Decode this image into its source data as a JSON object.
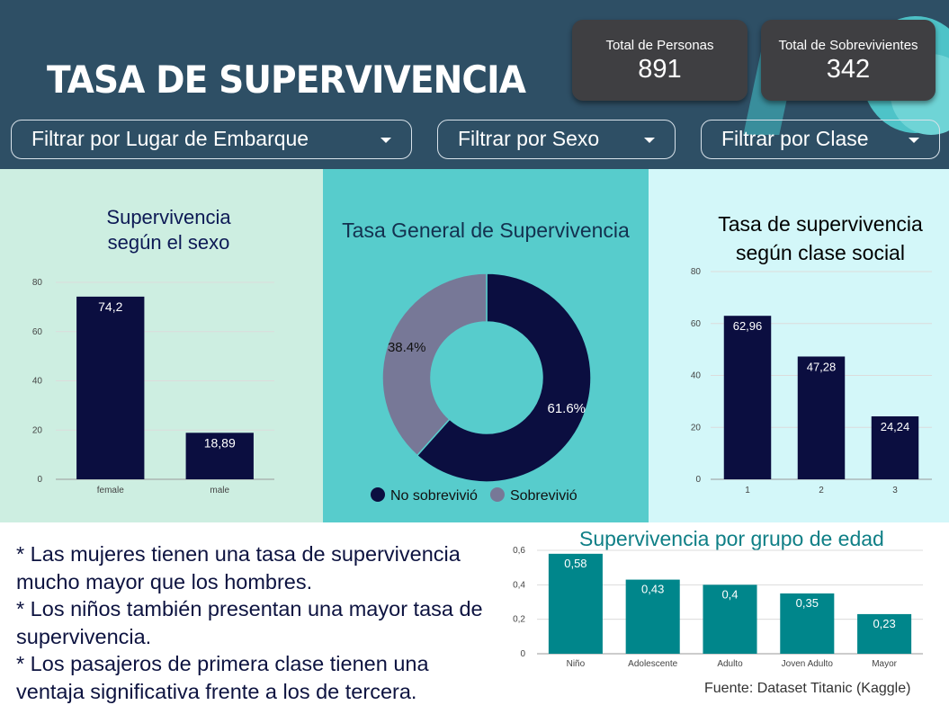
{
  "header": {
    "title": "TASA DE SUPERVIVENCIA",
    "kpis": [
      {
        "label": "Total de Personas",
        "value": "891"
      },
      {
        "label": "Total de Sobrevivientes",
        "value": "342"
      }
    ],
    "filters": [
      {
        "label": "Filtrar por Lugar de Embarque",
        "icon": "caret-down-icon"
      },
      {
        "label": "Filtrar por Sexo",
        "icon": "caret-down-icon"
      },
      {
        "label": "Filtrar por Clase",
        "icon": "caret-down-icon"
      }
    ]
  },
  "colors": {
    "header_bg": "#2e4f65",
    "navy": "#0b0e40",
    "grey_purple": "#777897",
    "teal": "#00868b",
    "panel_sex_bg": "#cdeee1",
    "panel_donut_bg": "#57cccc",
    "panel_class_bg": "#d3f7f9"
  },
  "chart_data": [
    {
      "type": "bar",
      "title": "Supervivencia según el sexo",
      "title_lines": [
        "Supervivencia",
        "según el sexo"
      ],
      "categories": [
        "female",
        "male"
      ],
      "values": [
        74.2,
        18.89
      ],
      "value_labels": [
        "74,2",
        "18,89"
      ],
      "yticks": [
        "0",
        "20",
        "40",
        "60",
        "80"
      ],
      "ylim": [
        0,
        80
      ],
      "grid": true
    },
    {
      "type": "pie",
      "title": "Tasa General de Supervivencia",
      "slices": [
        {
          "name": "No sobrevivió",
          "value": 61.6,
          "label": "61.6%",
          "color": "#0b0e40"
        },
        {
          "name": "Sobrevivió",
          "value": 38.4,
          "label": "38.4%",
          "color": "#777897"
        }
      ],
      "legend": "bottom"
    },
    {
      "type": "bar",
      "title": "Tasa de supervivencia según clase social",
      "title_lines": [
        "Tasa de supervivencia",
        "según clase social"
      ],
      "categories": [
        "1",
        "2",
        "3"
      ],
      "values": [
        62.96,
        47.28,
        24.24
      ],
      "value_labels": [
        "62,96",
        "47,28",
        "24,24"
      ],
      "yticks": [
        "0",
        "20",
        "40",
        "60",
        "80"
      ],
      "ylim": [
        0,
        80
      ],
      "grid": true
    },
    {
      "type": "bar",
      "title": "Supervivencia por grupo de edad",
      "categories": [
        "Niño",
        "Adolescente",
        "Adulto",
        "Joven Adulto",
        "Mayor"
      ],
      "values": [
        0.58,
        0.43,
        0.4,
        0.35,
        0.23
      ],
      "value_labels": [
        "0,58",
        "0,43",
        "0,4",
        "0,35",
        "0,23"
      ],
      "yticks": [
        "0",
        "0,2",
        "0,4",
        "0,6"
      ],
      "ylim": [
        0,
        0.6
      ],
      "grid": true
    }
  ],
  "notes": [
    "* Las mujeres tienen una tasa de supervivencia mucho mayor que los hombres.",
    "* Los niños también presentan una mayor tasa de supervivencia.",
    "* Los pasajeros de primera clase tienen una ventaja significativa frente a los de tercera."
  ],
  "source": "Fuente: Dataset Titanic (Kaggle)"
}
